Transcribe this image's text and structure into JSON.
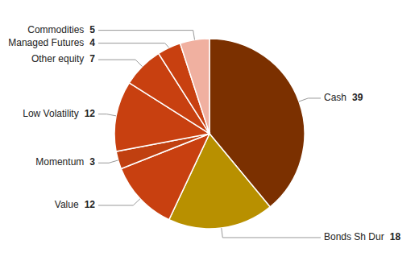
{
  "chart_data": {
    "type": "pie",
    "categories": [
      "Cash",
      "Bonds Sh Dur",
      "Value",
      "Momentum",
      "Low Volatility",
      "Other equity",
      "Managed Futures",
      "Commodities"
    ],
    "values": [
      39,
      18,
      12,
      3,
      12,
      7,
      4,
      5
    ],
    "colors": [
      "#7B3000",
      "#B89000",
      "#C84010",
      "#C04010",
      "#C84010",
      "#C84010",
      "#C84010",
      "#F0B0A0"
    ],
    "data_labels": true
  }
}
